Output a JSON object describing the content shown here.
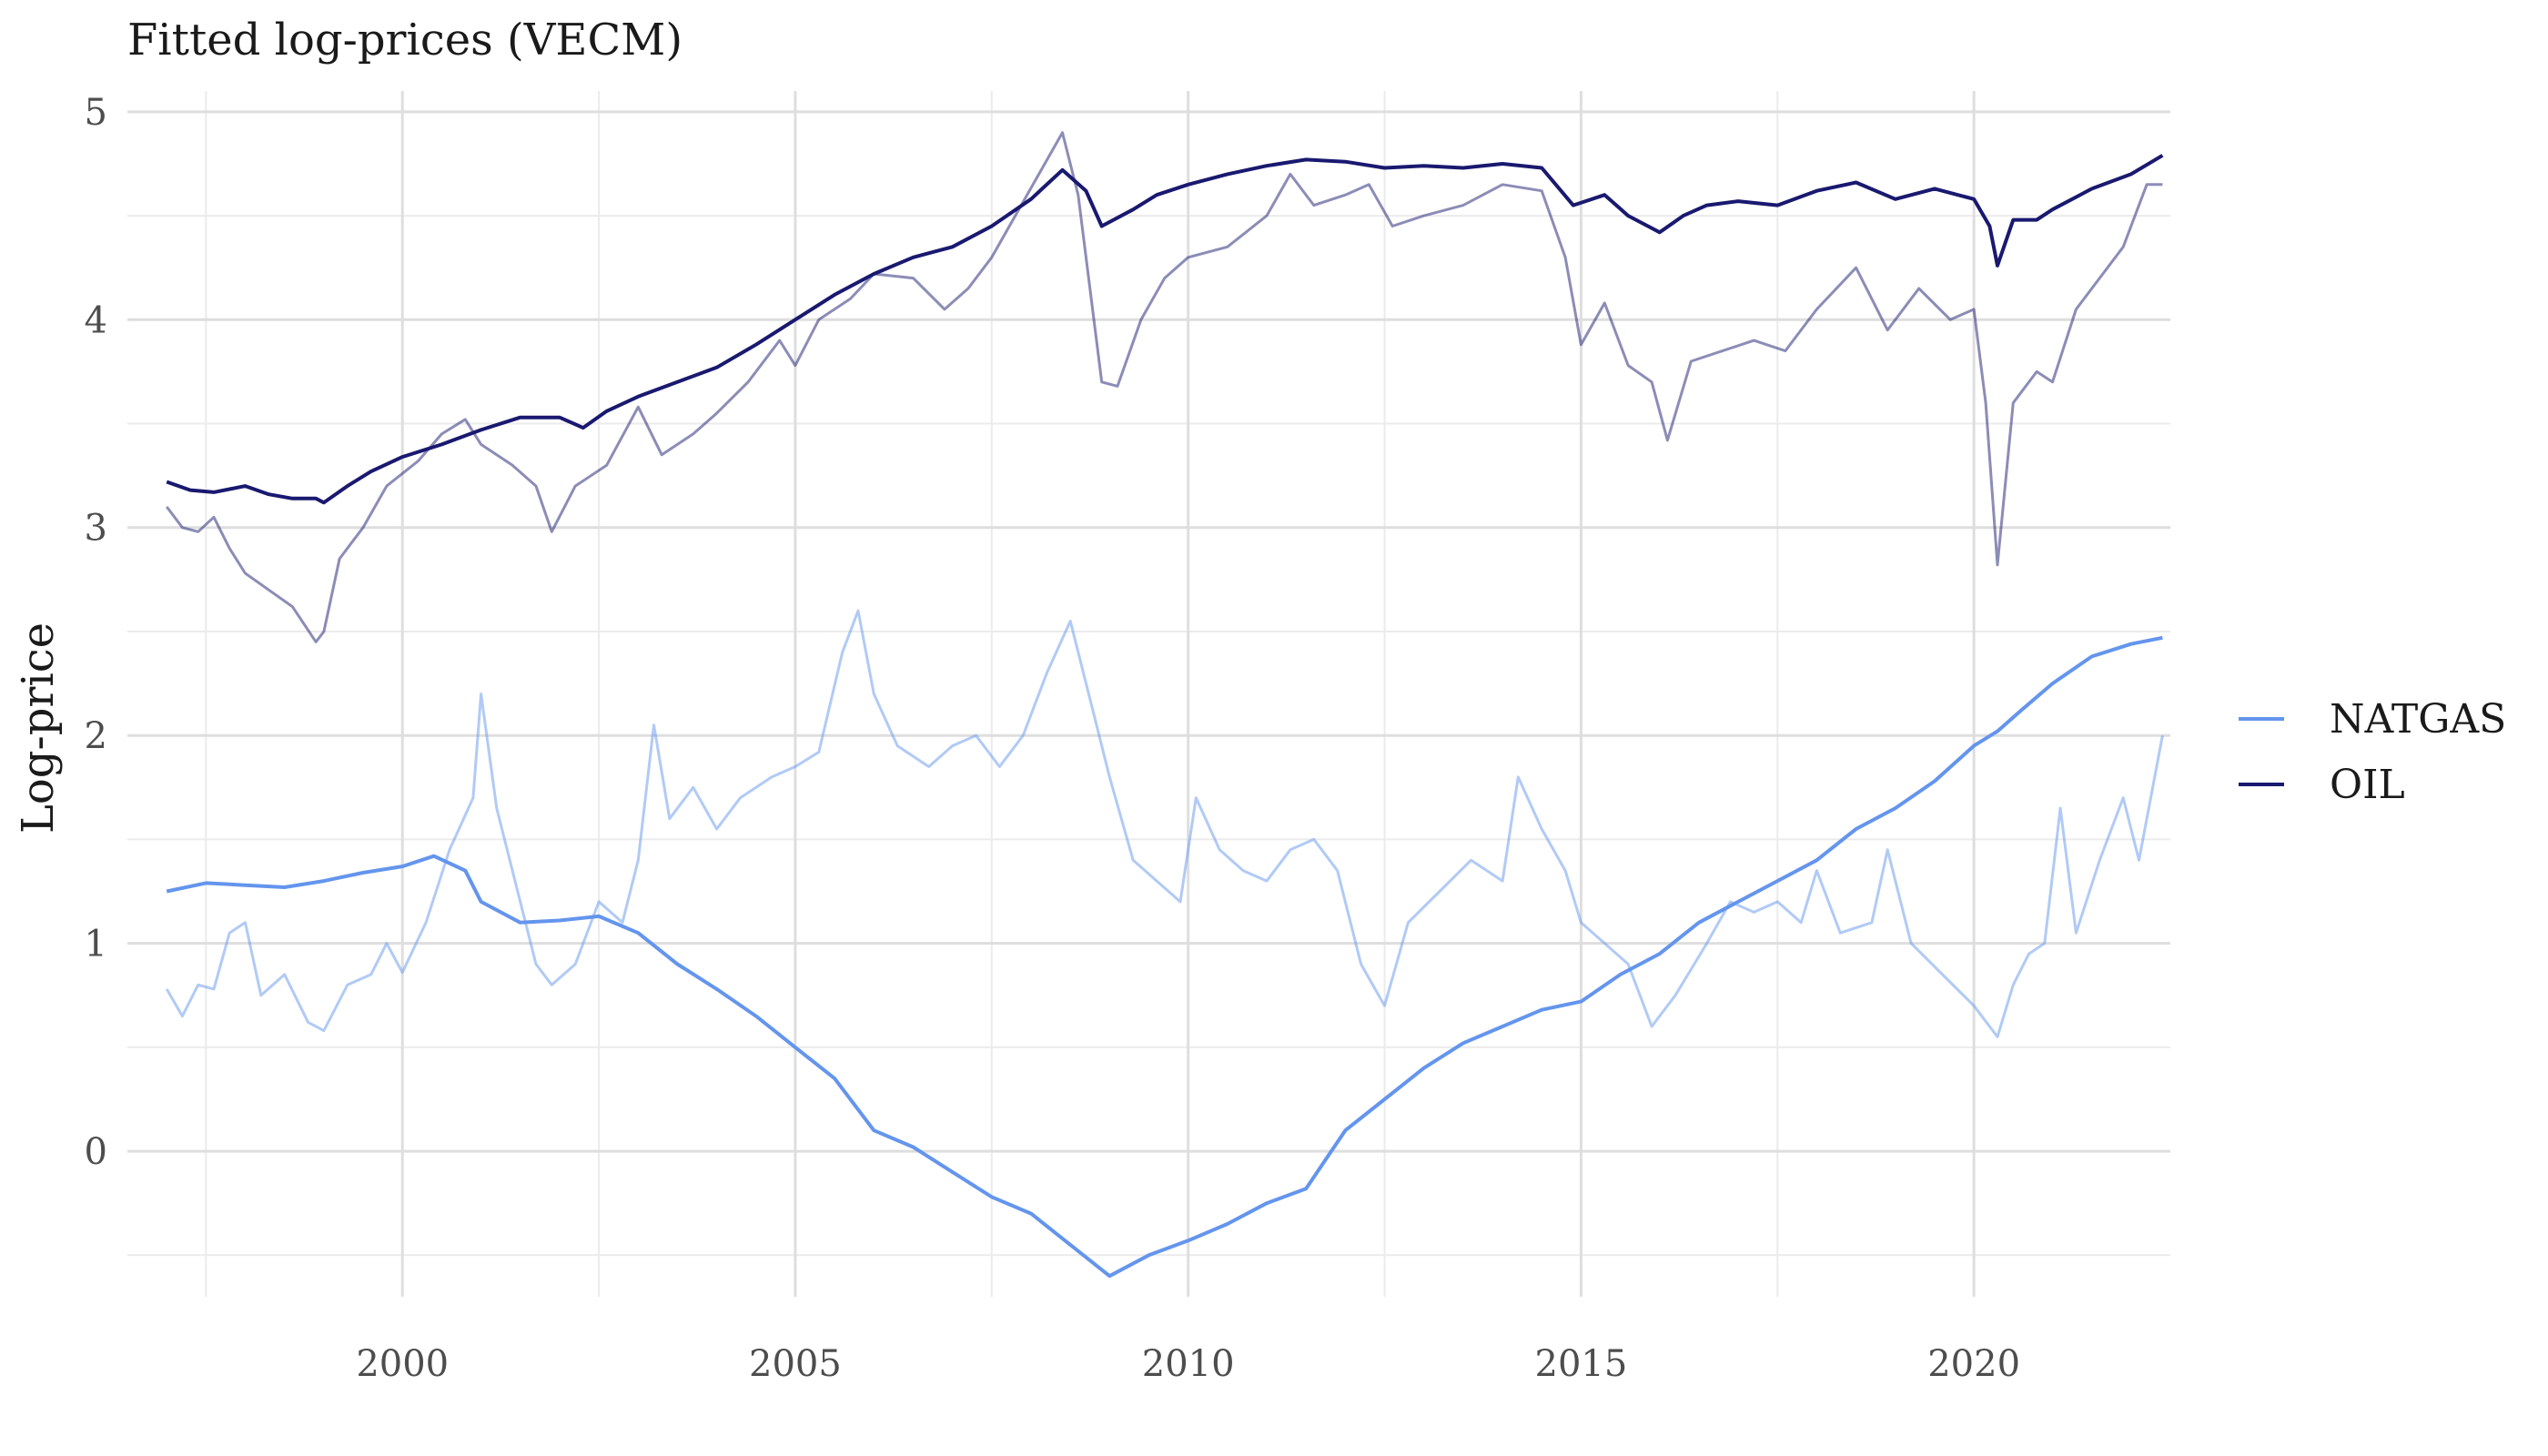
{
  "chart_data": {
    "type": "line",
    "title": "Fitted log-prices (VECM)",
    "xlabel": "",
    "ylabel": "Log-price",
    "xlim": [
      1996.5,
      2022.5
    ],
    "ylim": [
      -0.7,
      5.1
    ],
    "x_ticks": [
      2000,
      2005,
      2010,
      2015,
      2020
    ],
    "x_tick_labels": [
      "2000",
      "2005",
      "2010",
      "2015",
      "2020"
    ],
    "y_ticks": [
      0,
      1,
      2,
      3,
      4,
      5
    ],
    "y_tick_labels": [
      "0",
      "1",
      "2",
      "3",
      "4",
      "5"
    ],
    "grid": true,
    "legend_position": "right",
    "legend": [
      {
        "label": "NATGAS",
        "color": "#6495ED"
      },
      {
        "label": "OIL",
        "color": "#191970"
      }
    ],
    "series": [
      {
        "name": "OIL",
        "role": "fitted",
        "color": "#191970",
        "points": [
          [
            1997.0,
            3.22
          ],
          [
            1997.3,
            3.18
          ],
          [
            1997.6,
            3.17
          ],
          [
            1998.0,
            3.2
          ],
          [
            1998.3,
            3.16
          ],
          [
            1998.6,
            3.14
          ],
          [
            1998.9,
            3.14
          ],
          [
            1999.0,
            3.12
          ],
          [
            1999.3,
            3.2
          ],
          [
            1999.6,
            3.27
          ],
          [
            2000.0,
            3.34
          ],
          [
            2000.5,
            3.4
          ],
          [
            2001.0,
            3.47
          ],
          [
            2001.5,
            3.53
          ],
          [
            2002.0,
            3.53
          ],
          [
            2002.3,
            3.48
          ],
          [
            2002.6,
            3.56
          ],
          [
            2003.0,
            3.63
          ],
          [
            2003.5,
            3.7
          ],
          [
            2004.0,
            3.77
          ],
          [
            2004.5,
            3.88
          ],
          [
            2005.0,
            4.0
          ],
          [
            2005.5,
            4.12
          ],
          [
            2006.0,
            4.22
          ],
          [
            2006.5,
            4.3
          ],
          [
            2007.0,
            4.35
          ],
          [
            2007.5,
            4.45
          ],
          [
            2008.0,
            4.58
          ],
          [
            2008.4,
            4.72
          ],
          [
            2008.7,
            4.62
          ],
          [
            2008.9,
            4.45
          ],
          [
            2009.3,
            4.53
          ],
          [
            2009.6,
            4.6
          ],
          [
            2010.0,
            4.65
          ],
          [
            2010.5,
            4.7
          ],
          [
            2011.0,
            4.74
          ],
          [
            2011.5,
            4.77
          ],
          [
            2012.0,
            4.76
          ],
          [
            2012.5,
            4.73
          ],
          [
            2013.0,
            4.74
          ],
          [
            2013.5,
            4.73
          ],
          [
            2014.0,
            4.75
          ],
          [
            2014.5,
            4.73
          ],
          [
            2014.9,
            4.55
          ],
          [
            2015.3,
            4.6
          ],
          [
            2015.6,
            4.5
          ],
          [
            2016.0,
            4.42
          ],
          [
            2016.3,
            4.5
          ],
          [
            2016.6,
            4.55
          ],
          [
            2017.0,
            4.57
          ],
          [
            2017.5,
            4.55
          ],
          [
            2018.0,
            4.62
          ],
          [
            2018.5,
            4.66
          ],
          [
            2019.0,
            4.58
          ],
          [
            2019.5,
            4.63
          ],
          [
            2020.0,
            4.58
          ],
          [
            2020.2,
            4.45
          ],
          [
            2020.3,
            4.26
          ],
          [
            2020.5,
            4.48
          ],
          [
            2020.8,
            4.48
          ],
          [
            2021.0,
            4.53
          ],
          [
            2021.5,
            4.63
          ],
          [
            2022.0,
            4.7
          ],
          [
            2022.4,
            4.79
          ]
        ]
      },
      {
        "name": "OIL",
        "role": "observed",
        "color": "#191970",
        "opacity": 0.5,
        "points": [
          [
            1997.0,
            3.1
          ],
          [
            1997.2,
            3.0
          ],
          [
            1997.4,
            2.98
          ],
          [
            1997.6,
            3.05
          ],
          [
            1997.8,
            2.9
          ],
          [
            1998.0,
            2.78
          ],
          [
            1998.3,
            2.7
          ],
          [
            1998.6,
            2.62
          ],
          [
            1998.9,
            2.45
          ],
          [
            1999.0,
            2.5
          ],
          [
            1999.2,
            2.85
          ],
          [
            1999.5,
            3.0
          ],
          [
            1999.8,
            3.2
          ],
          [
            2000.2,
            3.32
          ],
          [
            2000.5,
            3.45
          ],
          [
            2000.8,
            3.52
          ],
          [
            2001.0,
            3.4
          ],
          [
            2001.4,
            3.3
          ],
          [
            2001.7,
            3.2
          ],
          [
            2001.9,
            2.98
          ],
          [
            2002.2,
            3.2
          ],
          [
            2002.6,
            3.3
          ],
          [
            2003.0,
            3.58
          ],
          [
            2003.3,
            3.35
          ],
          [
            2003.7,
            3.45
          ],
          [
            2004.0,
            3.55
          ],
          [
            2004.4,
            3.7
          ],
          [
            2004.8,
            3.9
          ],
          [
            2005.0,
            3.78
          ],
          [
            2005.3,
            4.0
          ],
          [
            2005.7,
            4.1
          ],
          [
            2006.0,
            4.22
          ],
          [
            2006.5,
            4.2
          ],
          [
            2006.9,
            4.05
          ],
          [
            2007.2,
            4.15
          ],
          [
            2007.5,
            4.3
          ],
          [
            2007.8,
            4.5
          ],
          [
            2008.1,
            4.7
          ],
          [
            2008.4,
            4.9
          ],
          [
            2008.6,
            4.6
          ],
          [
            2008.9,
            3.7
          ],
          [
            2009.1,
            3.68
          ],
          [
            2009.4,
            4.0
          ],
          [
            2009.7,
            4.2
          ],
          [
            2010.0,
            4.3
          ],
          [
            2010.5,
            4.35
          ],
          [
            2011.0,
            4.5
          ],
          [
            2011.3,
            4.7
          ],
          [
            2011.6,
            4.55
          ],
          [
            2012.0,
            4.6
          ],
          [
            2012.3,
            4.65
          ],
          [
            2012.6,
            4.45
          ],
          [
            2013.0,
            4.5
          ],
          [
            2013.5,
            4.55
          ],
          [
            2014.0,
            4.65
          ],
          [
            2014.5,
            4.62
          ],
          [
            2014.8,
            4.3
          ],
          [
            2015.0,
            3.88
          ],
          [
            2015.3,
            4.08
          ],
          [
            2015.6,
            3.78
          ],
          [
            2015.9,
            3.7
          ],
          [
            2016.1,
            3.42
          ],
          [
            2016.4,
            3.8
          ],
          [
            2016.8,
            3.85
          ],
          [
            2017.2,
            3.9
          ],
          [
            2017.6,
            3.85
          ],
          [
            2018.0,
            4.05
          ],
          [
            2018.5,
            4.25
          ],
          [
            2018.9,
            3.95
          ],
          [
            2019.3,
            4.15
          ],
          [
            2019.7,
            4.0
          ],
          [
            2020.0,
            4.05
          ],
          [
            2020.15,
            3.6
          ],
          [
            2020.3,
            2.82
          ],
          [
            2020.5,
            3.6
          ],
          [
            2020.8,
            3.75
          ],
          [
            2021.0,
            3.7
          ],
          [
            2021.3,
            4.05
          ],
          [
            2021.6,
            4.2
          ],
          [
            2021.9,
            4.35
          ],
          [
            2022.2,
            4.65
          ],
          [
            2022.4,
            4.65
          ]
        ]
      },
      {
        "name": "NATGAS",
        "role": "fitted",
        "color": "#6495ED",
        "points": [
          [
            1997.0,
            1.25
          ],
          [
            1997.5,
            1.29
          ],
          [
            1998.0,
            1.28
          ],
          [
            1998.5,
            1.27
          ],
          [
            1999.0,
            1.3
          ],
          [
            1999.5,
            1.34
          ],
          [
            2000.0,
            1.37
          ],
          [
            2000.4,
            1.42
          ],
          [
            2000.8,
            1.35
          ],
          [
            2001.0,
            1.2
          ],
          [
            2001.5,
            1.1
          ],
          [
            2002.0,
            1.11
          ],
          [
            2002.5,
            1.13
          ],
          [
            2003.0,
            1.05
          ],
          [
            2003.5,
            0.9
          ],
          [
            2004.0,
            0.78
          ],
          [
            2004.5,
            0.65
          ],
          [
            2005.0,
            0.5
          ],
          [
            2005.5,
            0.35
          ],
          [
            2006.0,
            0.1
          ],
          [
            2006.5,
            0.02
          ],
          [
            2007.0,
            -0.1
          ],
          [
            2007.5,
            -0.22
          ],
          [
            2008.0,
            -0.3
          ],
          [
            2008.5,
            -0.45
          ],
          [
            2009.0,
            -0.6
          ],
          [
            2009.5,
            -0.5
          ],
          [
            2010.0,
            -0.43
          ],
          [
            2010.5,
            -0.35
          ],
          [
            2011.0,
            -0.25
          ],
          [
            2011.5,
            -0.18
          ],
          [
            2012.0,
            0.1
          ],
          [
            2012.5,
            0.25
          ],
          [
            2013.0,
            0.4
          ],
          [
            2013.5,
            0.52
          ],
          [
            2014.0,
            0.6
          ],
          [
            2014.5,
            0.68
          ],
          [
            2015.0,
            0.72
          ],
          [
            2015.5,
            0.85
          ],
          [
            2016.0,
            0.95
          ],
          [
            2016.5,
            1.1
          ],
          [
            2017.0,
            1.2
          ],
          [
            2017.5,
            1.3
          ],
          [
            2018.0,
            1.4
          ],
          [
            2018.5,
            1.55
          ],
          [
            2019.0,
            1.65
          ],
          [
            2019.5,
            1.78
          ],
          [
            2020.0,
            1.95
          ],
          [
            2020.3,
            2.02
          ],
          [
            2020.6,
            2.12
          ],
          [
            2021.0,
            2.25
          ],
          [
            2021.5,
            2.38
          ],
          [
            2022.0,
            2.44
          ],
          [
            2022.4,
            2.47
          ]
        ]
      },
      {
        "name": "NATGAS",
        "role": "observed",
        "color": "#6495ED",
        "opacity": 0.5,
        "points": [
          [
            1997.0,
            0.78
          ],
          [
            1997.2,
            0.65
          ],
          [
            1997.4,
            0.8
          ],
          [
            1997.6,
            0.78
          ],
          [
            1997.8,
            1.05
          ],
          [
            1998.0,
            1.1
          ],
          [
            1998.2,
            0.75
          ],
          [
            1998.5,
            0.85
          ],
          [
            1998.8,
            0.62
          ],
          [
            1999.0,
            0.58
          ],
          [
            1999.3,
            0.8
          ],
          [
            1999.6,
            0.85
          ],
          [
            1999.8,
            1.0
          ],
          [
            2000.0,
            0.86
          ],
          [
            2000.3,
            1.1
          ],
          [
            2000.6,
            1.45
          ],
          [
            2000.9,
            1.7
          ],
          [
            2001.0,
            2.2
          ],
          [
            2001.2,
            1.65
          ],
          [
            2001.5,
            1.2
          ],
          [
            2001.7,
            0.9
          ],
          [
            2001.9,
            0.8
          ],
          [
            2002.2,
            0.9
          ],
          [
            2002.5,
            1.2
          ],
          [
            2002.8,
            1.1
          ],
          [
            2003.0,
            1.4
          ],
          [
            2003.2,
            2.05
          ],
          [
            2003.4,
            1.6
          ],
          [
            2003.7,
            1.75
          ],
          [
            2004.0,
            1.55
          ],
          [
            2004.3,
            1.7
          ],
          [
            2004.7,
            1.8
          ],
          [
            2005.0,
            1.85
          ],
          [
            2005.3,
            1.92
          ],
          [
            2005.6,
            2.4
          ],
          [
            2005.8,
            2.6
          ],
          [
            2006.0,
            2.2
          ],
          [
            2006.3,
            1.95
          ],
          [
            2006.7,
            1.85
          ],
          [
            2007.0,
            1.95
          ],
          [
            2007.3,
            2.0
          ],
          [
            2007.6,
            1.85
          ],
          [
            2007.9,
            2.0
          ],
          [
            2008.2,
            2.3
          ],
          [
            2008.5,
            2.55
          ],
          [
            2008.8,
            2.1
          ],
          [
            2009.0,
            1.8
          ],
          [
            2009.3,
            1.4
          ],
          [
            2009.6,
            1.3
          ],
          [
            2009.9,
            1.2
          ],
          [
            2010.1,
            1.7
          ],
          [
            2010.4,
            1.45
          ],
          [
            2010.7,
            1.35
          ],
          [
            2011.0,
            1.3
          ],
          [
            2011.3,
            1.45
          ],
          [
            2011.6,
            1.5
          ],
          [
            2011.9,
            1.35
          ],
          [
            2012.2,
            0.9
          ],
          [
            2012.5,
            0.7
          ],
          [
            2012.8,
            1.1
          ],
          [
            2013.2,
            1.25
          ],
          [
            2013.6,
            1.4
          ],
          [
            2014.0,
            1.3
          ],
          [
            2014.2,
            1.8
          ],
          [
            2014.5,
            1.55
          ],
          [
            2014.8,
            1.35
          ],
          [
            2015.0,
            1.1
          ],
          [
            2015.3,
            1.0
          ],
          [
            2015.6,
            0.9
          ],
          [
            2015.9,
            0.6
          ],
          [
            2016.2,
            0.75
          ],
          [
            2016.6,
            1.0
          ],
          [
            2016.9,
            1.2
          ],
          [
            2017.2,
            1.15
          ],
          [
            2017.5,
            1.2
          ],
          [
            2017.8,
            1.1
          ],
          [
            2018.0,
            1.35
          ],
          [
            2018.3,
            1.05
          ],
          [
            2018.7,
            1.1
          ],
          [
            2018.9,
            1.45
          ],
          [
            2019.2,
            1.0
          ],
          [
            2019.6,
            0.85
          ],
          [
            2020.0,
            0.7
          ],
          [
            2020.3,
            0.55
          ],
          [
            2020.5,
            0.8
          ],
          [
            2020.7,
            0.95
          ],
          [
            2020.9,
            1.0
          ],
          [
            2021.1,
            1.65
          ],
          [
            2021.3,
            1.05
          ],
          [
            2021.6,
            1.4
          ],
          [
            2021.9,
            1.7
          ],
          [
            2022.1,
            1.4
          ],
          [
            2022.4,
            2.0
          ]
        ]
      }
    ]
  }
}
